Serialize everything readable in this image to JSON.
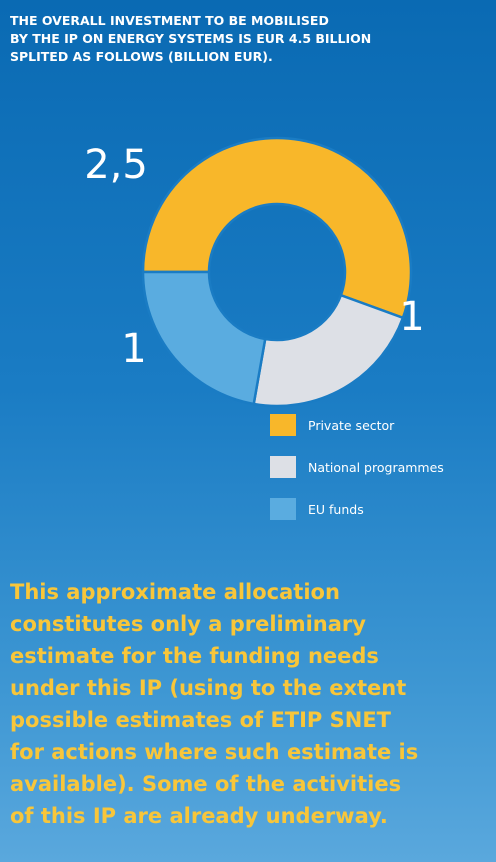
{
  "heading": [
    "THE OVERALL INVESTMENT TO BE MOBILISED",
    "BY THE IP ON ENERGY SYSTEMS IS EUR 4.5 BILLION",
    "SPLITED AS FOLLOWS (BILLION EUR)."
  ],
  "chart_data": {
    "type": "pie",
    "donut": true,
    "categories": [
      "Private sector",
      "National programmes",
      "EU funds"
    ],
    "values": [
      2.5,
      1,
      1
    ],
    "data_labels": [
      "2,5",
      "1",
      "1"
    ],
    "colors": [
      "#f8b72a",
      "#dde0e6",
      "#5aace0"
    ],
    "legend": "bottom-right"
  },
  "note": [
    "This approximate allocation",
    "constitutes only a preliminary",
    "estimate for the funding needs",
    "under this IP (using to the extent",
    "possible estimates of ETIP SNET",
    "for actions where such estimate is",
    "available). Some of the activities",
    "of this IP are already underway."
  ]
}
